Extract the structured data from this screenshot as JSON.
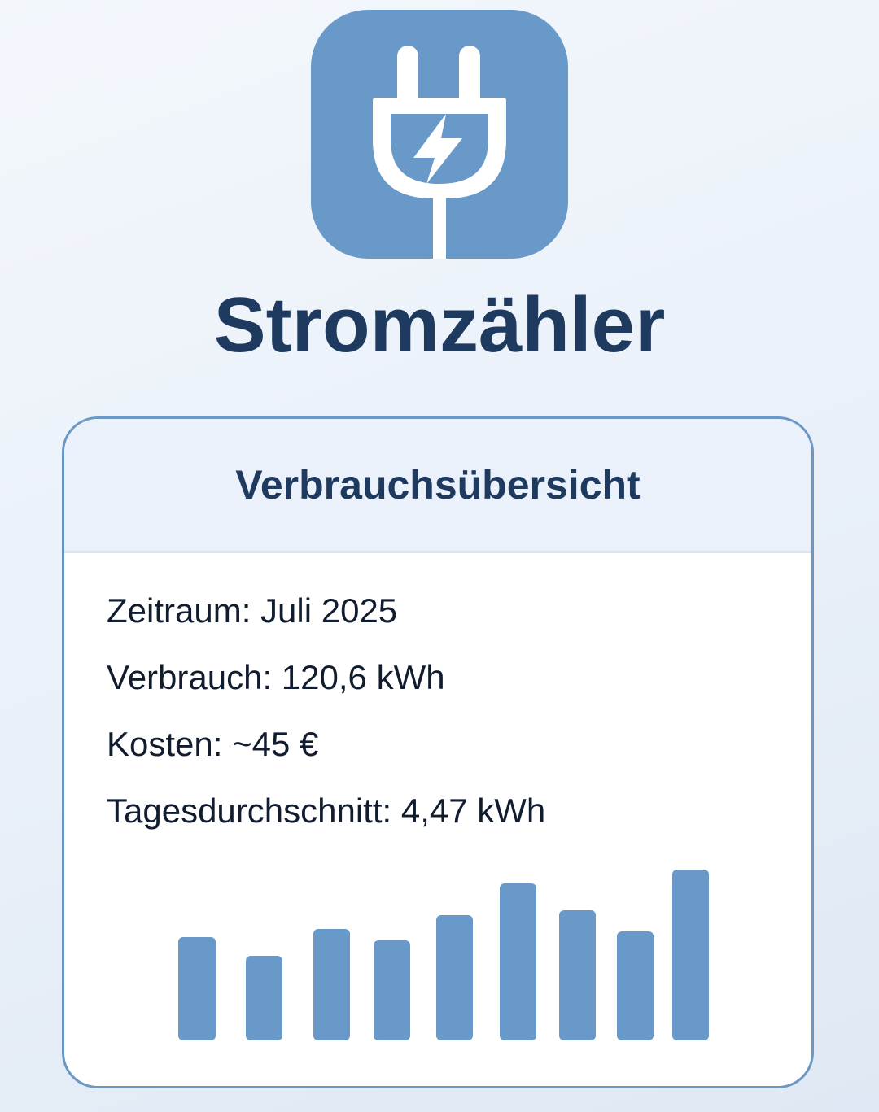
{
  "app": {
    "title": "Stromzähler",
    "icon": "plug-lightning-icon",
    "accent_color": "#6899c9",
    "title_color": "#1e3a5f"
  },
  "card": {
    "title": "Verbrauchsübersicht",
    "rows": [
      {
        "label": "Zeitraum: Juli 2025"
      },
      {
        "label": "Verbrauch: 120,6 kWh"
      },
      {
        "label": "Kosten: ~45 €"
      },
      {
        "label": "Tagesdurchschnitt: 4,47 kWh"
      }
    ]
  },
  "chart_data": {
    "type": "bar",
    "values": [
      127,
      104,
      137,
      123,
      154,
      193,
      160,
      134,
      210
    ],
    "bar_color": "#6899c9"
  }
}
